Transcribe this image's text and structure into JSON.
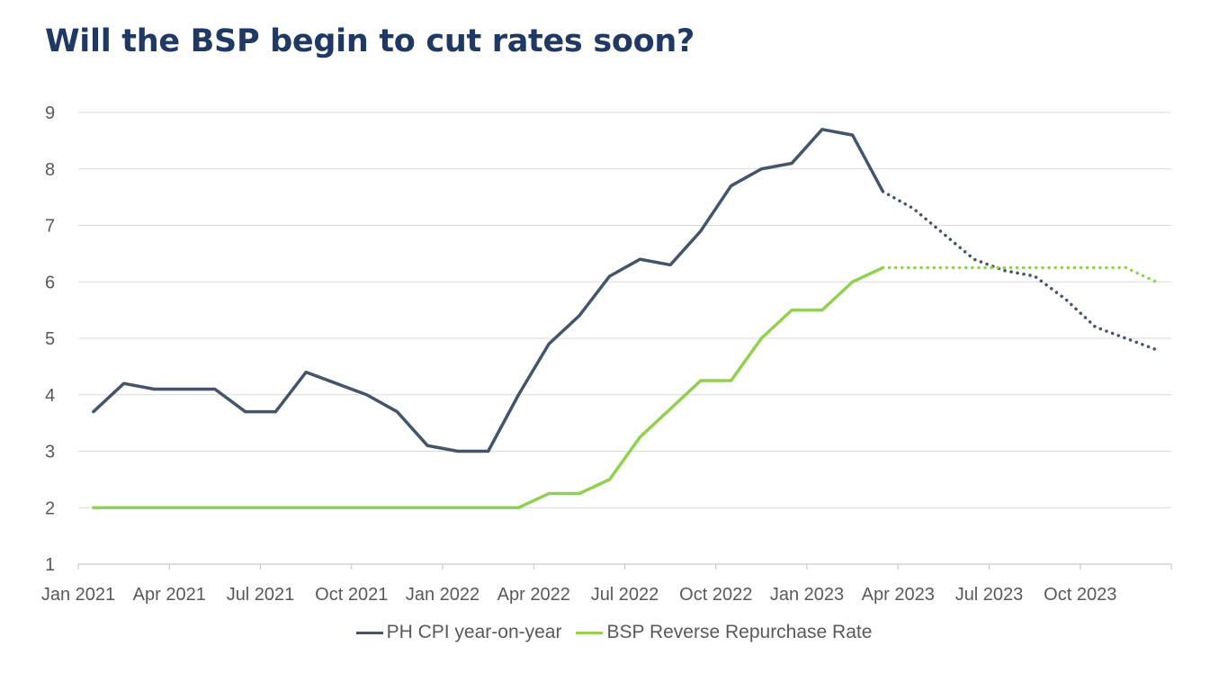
{
  "chart_data": {
    "type": "line",
    "title": "Will the BSP begin to cut rates soon?",
    "xlabel": "",
    "ylabel": "",
    "ylim": [
      1,
      9
    ],
    "yticks": [
      "1",
      "2",
      "3",
      "4",
      "5",
      "6",
      "7",
      "8",
      "9"
    ],
    "xlim": [
      "2021-01",
      "2023-12"
    ],
    "xtick_labels": [
      {
        "month": "2021-01",
        "label": "Jan 2021"
      },
      {
        "month": "2021-04",
        "label": "Apr 2021"
      },
      {
        "month": "2021-07",
        "label": "Jul 2021"
      },
      {
        "month": "2021-10",
        "label": "Oct 2021"
      },
      {
        "month": "2022-01",
        "label": "Jan 2022"
      },
      {
        "month": "2022-04",
        "label": "Apr 2022"
      },
      {
        "month": "2022-07",
        "label": "Jul 2022"
      },
      {
        "month": "2022-10",
        "label": "Oct 2022"
      },
      {
        "month": "2023-01",
        "label": "Jan 2023"
      },
      {
        "month": "2023-04",
        "label": "Apr 2023"
      },
      {
        "month": "2023-07",
        "label": "Jul 2023"
      },
      {
        "month": "2023-10",
        "label": "Oct 2023"
      }
    ],
    "grid": true,
    "legend_position": "bottom",
    "series": [
      {
        "name": "PH CPI year-on-year",
        "color": "#44546a",
        "x": [
          "2021-01",
          "2021-02",
          "2021-03",
          "2021-04",
          "2021-05",
          "2021-06",
          "2021-07",
          "2021-08",
          "2021-09",
          "2021-10",
          "2021-11",
          "2021-12",
          "2022-01",
          "2022-02",
          "2022-03",
          "2022-04",
          "2022-05",
          "2022-06",
          "2022-07",
          "2022-08",
          "2022-09",
          "2022-10",
          "2022-11",
          "2022-12",
          "2023-01",
          "2023-02",
          "2023-03",
          "2023-04",
          "2023-05",
          "2023-06",
          "2023-07",
          "2023-08",
          "2023-09",
          "2023-10",
          "2023-11",
          "2023-12"
        ],
        "values": [
          3.7,
          4.2,
          4.1,
          4.1,
          4.1,
          3.7,
          3.7,
          4.4,
          4.2,
          4.0,
          3.7,
          3.1,
          3.0,
          3.0,
          4.0,
          4.9,
          5.4,
          6.1,
          6.4,
          6.3,
          6.9,
          7.7,
          8.0,
          8.1,
          8.7,
          8.6,
          7.6,
          7.3,
          6.85,
          6.4,
          6.2,
          6.1,
          5.7,
          5.2,
          5.0,
          4.8
        ],
        "projection_from": "2023-03"
      },
      {
        "name": "BSP Reverse Repurchase Rate",
        "color": "#92d050",
        "x": [
          "2021-01",
          "2021-02",
          "2021-03",
          "2021-04",
          "2021-05",
          "2021-06",
          "2021-07",
          "2021-08",
          "2021-09",
          "2021-10",
          "2021-11",
          "2021-12",
          "2022-01",
          "2022-02",
          "2022-03",
          "2022-04",
          "2022-05",
          "2022-06",
          "2022-07",
          "2022-08",
          "2022-09",
          "2022-10",
          "2022-11",
          "2022-12",
          "2023-01",
          "2023-02",
          "2023-03",
          "2023-04",
          "2023-05",
          "2023-06",
          "2023-07",
          "2023-08",
          "2023-09",
          "2023-10",
          "2023-11",
          "2023-12"
        ],
        "values": [
          2.0,
          2.0,
          2.0,
          2.0,
          2.0,
          2.0,
          2.0,
          2.0,
          2.0,
          2.0,
          2.0,
          2.0,
          2.0,
          2.0,
          2.0,
          2.25,
          2.25,
          2.5,
          3.25,
          3.75,
          4.25,
          4.25,
          5.0,
          5.5,
          5.5,
          6.0,
          6.25,
          6.25,
          6.25,
          6.25,
          6.25,
          6.25,
          6.25,
          6.25,
          6.25,
          6.0
        ],
        "projection_from": "2023-03"
      }
    ]
  }
}
